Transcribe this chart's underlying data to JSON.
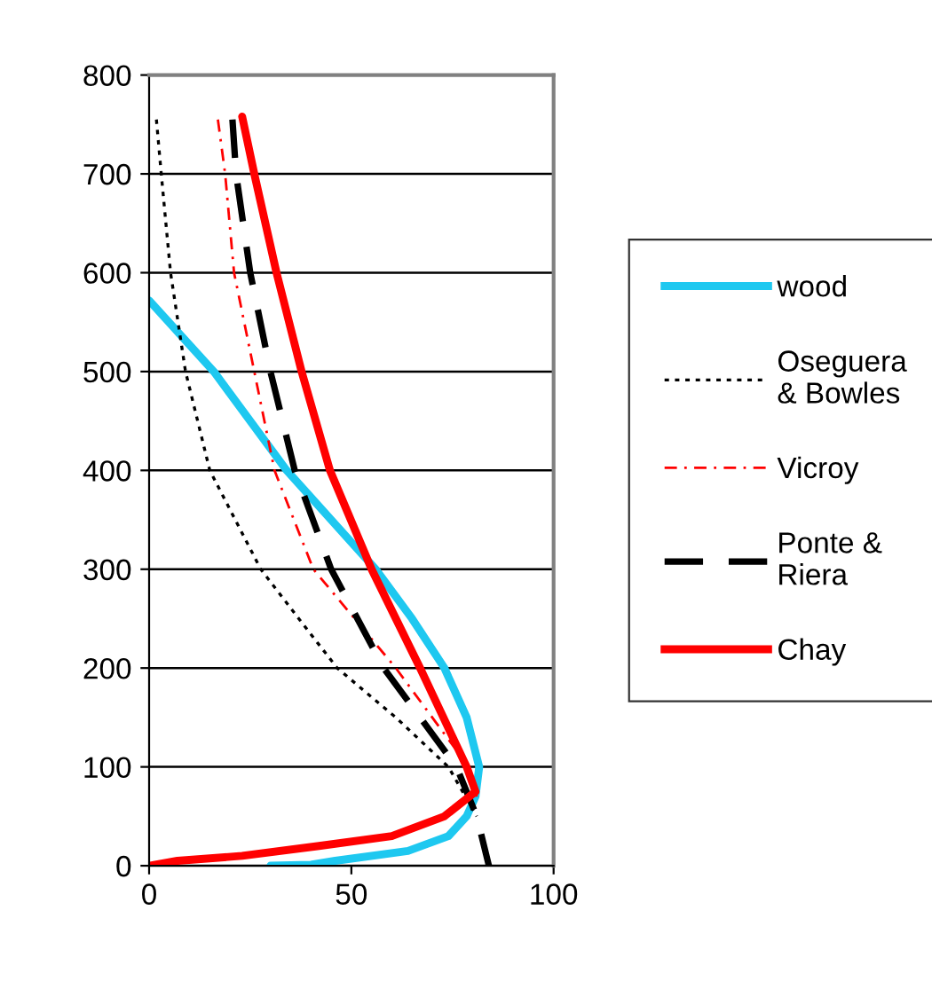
{
  "chart_data": {
    "type": "line",
    "xlim": [
      0,
      100
    ],
    "xticks": [
      0,
      50,
      100
    ],
    "ylim": [
      0,
      800
    ],
    "yticks": [
      0,
      100,
      200,
      300,
      400,
      500,
      600,
      700,
      800
    ],
    "grid": "y",
    "legend": "right",
    "series": [
      {
        "name": "wood",
        "color": "#1ec8f0",
        "line_style": "solid",
        "x": [
          0,
          16,
          34,
          56,
          65,
          73,
          78.5,
          81.6,
          80.7,
          78.5,
          74,
          64,
          46,
          40,
          30
        ],
        "values": [
          572,
          500,
          400,
          300,
          250,
          200,
          150,
          100,
          70,
          50,
          30,
          15,
          5,
          1,
          0
        ]
      },
      {
        "name": "Oseguera & Bowles",
        "color": "#000000",
        "line_style": "dotted",
        "x": [
          1.8,
          3,
          5.3,
          9,
          15,
          27.6,
          37,
          46.5,
          61,
          74,
          81
        ],
        "values": [
          755,
          700,
          600,
          500,
          400,
          300,
          250,
          200,
          150,
          100,
          50
        ]
      },
      {
        "name": "Vicroy",
        "color": "#ff0000",
        "line_style": "dashdot",
        "x": [
          17,
          18.8,
          21,
          26,
          31,
          40.6,
          61,
          79,
          81
        ],
        "values": [
          755,
          700,
          600,
          500,
          400,
          300,
          200,
          100,
          70
        ]
      },
      {
        "name": "Ponte & Riera",
        "color": "#000000",
        "line_style": "dashed",
        "x": [
          20.6,
          21.5,
          25,
          30,
          36,
          45,
          58,
          76,
          81,
          84
        ],
        "values": [
          755,
          700,
          600,
          500,
          400,
          300,
          200,
          100,
          50,
          0
        ]
      },
      {
        "name": "Chay",
        "color": "#ff0000",
        "line_style": "solid",
        "x": [
          23,
          26,
          31.5,
          37.7,
          44.7,
          55,
          67,
          78.5,
          80.7,
          73,
          60,
          42,
          23,
          7,
          0
        ],
        "values": [
          758,
          700,
          600,
          500,
          400,
          300,
          200,
          100,
          75,
          50,
          30,
          20,
          10,
          5,
          0
        ]
      }
    ]
  }
}
